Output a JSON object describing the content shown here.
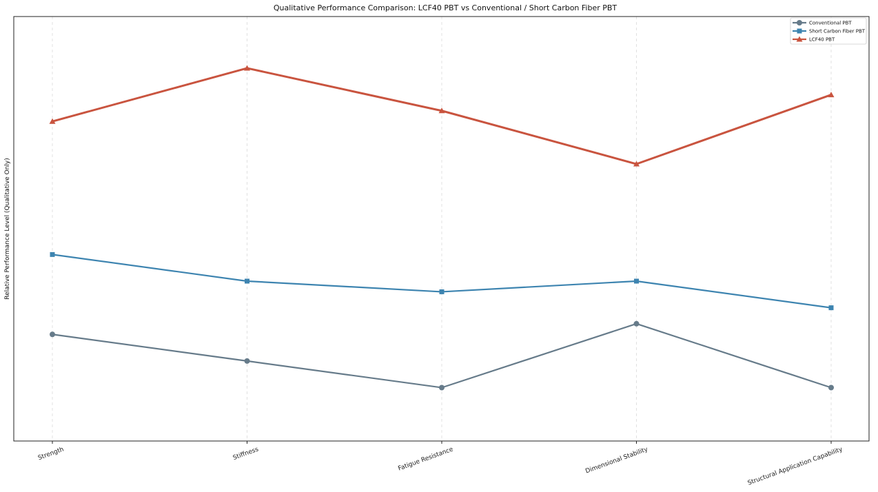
{
  "chart_data": {
    "type": "line",
    "title": "Qualitative Performance Comparison: LCF40 PBT vs Conventional / Short Carbon Fiber PBT",
    "xlabel": "",
    "ylabel": "Relative Performance Level (Qualitative Only)",
    "categories": [
      "Strength",
      "Stiffness",
      "Fatigue Resistance",
      "Dimensional Stability",
      "Structural Application Capability"
    ],
    "series": [
      {
        "name": "Conventional PBT",
        "values": [
          2.0,
          1.5,
          1.0,
          2.2,
          1.0
        ],
        "color": "#667b8a",
        "marker": "circle"
      },
      {
        "name": "Short Carbon Fiber PBT",
        "values": [
          3.5,
          3.0,
          2.8,
          3.0,
          2.5
        ],
        "color": "#3d84b0",
        "marker": "square"
      },
      {
        "name": "LCF40 PBT",
        "values": [
          6.0,
          7.0,
          6.2,
          5.2,
          6.5
        ],
        "color": "#c9543f",
        "marker": "triangle"
      }
    ],
    "ylim": [
      -0.003,
      7.97
    ],
    "grid": {
      "x": true,
      "y": false
    },
    "y_ticks_visible": false,
    "legend": "top-right"
  }
}
